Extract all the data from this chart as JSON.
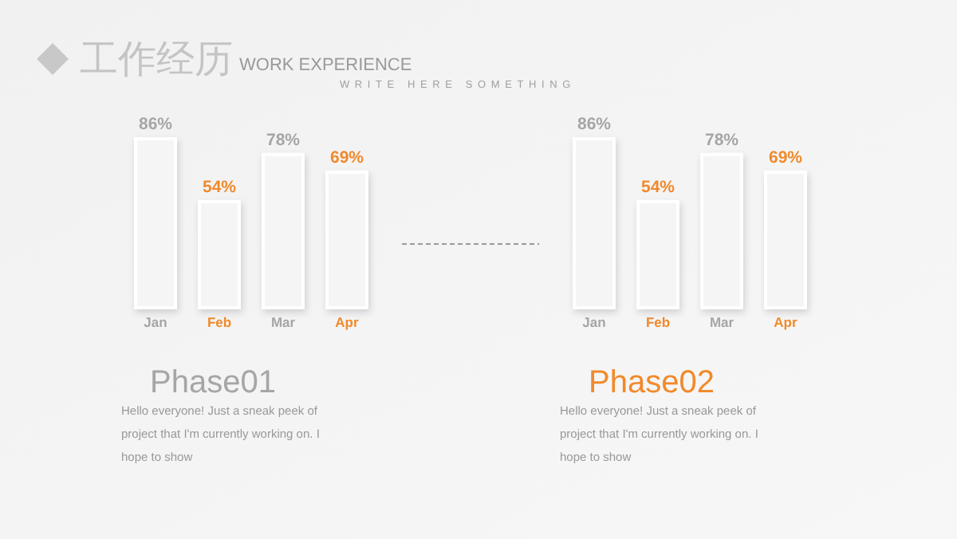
{
  "chart_data": [
    {
      "type": "other",
      "title": "工作经历",
      "subtitle": "WORK EXPERIENCE",
      "annotations": [
        "WRITE HERE SOMETHING"
      ]
    },
    {
      "type": "bar",
      "title": "Phase01",
      "categories": [
        "Jan",
        "Feb",
        "Mar",
        "Apr"
      ],
      "values": [
        86,
        54,
        78,
        69
      ],
      "color": "#f5f5f5",
      "data_labels": true,
      "value_labels": [
        "86%",
        "54%",
        "78%",
        "69%"
      ],
      "annotations": [
        "Hello everyone! Just a sneak peek of project that I'm currently working on. I hope to show"
      ]
    },
    {
      "type": "bar",
      "title": "Phase02",
      "categories": [
        "Jan",
        "Feb",
        "Mar",
        "Apr"
      ],
      "values": [
        86,
        54,
        78,
        69
      ],
      "color": "#f5f5f5",
      "data_labels": true,
      "value_labels": [
        "86%",
        "54%",
        "78%",
        "69%"
      ],
      "annotations": [
        "Hello everyone! Just a sneak peek of project that I'm currently working on. I hope to show"
      ]
    }
  ]
}
